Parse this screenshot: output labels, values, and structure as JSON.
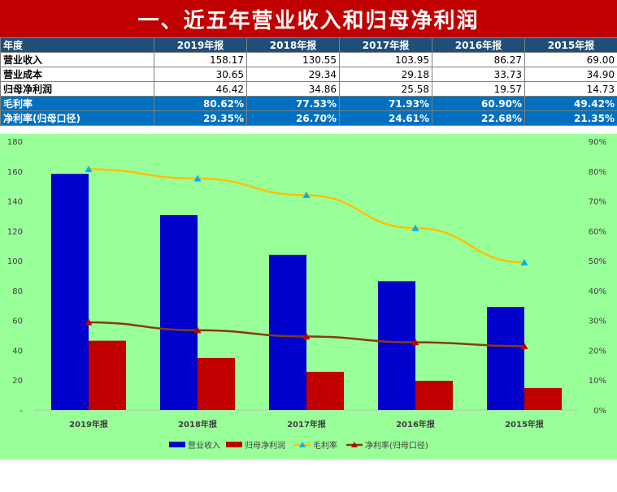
{
  "title": "一、近五年营业收入和归母净利润",
  "table": {
    "header_label": "年度",
    "years": [
      "2019年报",
      "2018年报",
      "2017年报",
      "2016年报",
      "2015年报"
    ],
    "rows": [
      {
        "label": "营业收入",
        "values": [
          "158.17",
          "130.55",
          "103.95",
          "86.27",
          "69.00"
        ],
        "style": "plain"
      },
      {
        "label": "营业成本",
        "values": [
          "30.65",
          "29.34",
          "29.18",
          "33.73",
          "34.90"
        ],
        "style": "plain"
      },
      {
        "label": "归母净利润",
        "values": [
          "46.42",
          "34.86",
          "25.58",
          "19.57",
          "14.73"
        ],
        "style": "plain"
      },
      {
        "label": "毛利率",
        "values": [
          "80.62%",
          "77.53%",
          "71.93%",
          "60.90%",
          "49.42%"
        ],
        "style": "rate"
      },
      {
        "label": "净利率(归母口径)",
        "values": [
          "29.35%",
          "26.70%",
          "24.61%",
          "22.68%",
          "21.35%"
        ],
        "style": "rate"
      }
    ]
  },
  "chart_data": {
    "type": "bar",
    "categories": [
      "2019年报",
      "2018年报",
      "2017年报",
      "2016年报",
      "2015年报"
    ],
    "series": [
      {
        "name": "营业收入",
        "type": "bar",
        "axis": "left",
        "color": "#0000cc",
        "values": [
          158.17,
          130.55,
          103.95,
          86.27,
          69.0
        ]
      },
      {
        "name": "归母净利润",
        "type": "bar",
        "axis": "left",
        "color": "#c00000",
        "values": [
          46.42,
          34.86,
          25.58,
          19.57,
          14.73
        ]
      },
      {
        "name": "毛利率",
        "type": "line",
        "axis": "right",
        "color": "#ffc000",
        "marker_color": "#00b0f0",
        "values": [
          80.62,
          77.53,
          71.93,
          60.9,
          49.42
        ]
      },
      {
        "name": "净利率(归母口径)",
        "type": "line",
        "axis": "right",
        "color": "#843c0c",
        "marker_color": "#c00000",
        "values": [
          29.35,
          26.7,
          24.61,
          22.68,
          21.35
        ]
      }
    ],
    "y_left": {
      "min": 0,
      "max": 180,
      "step": 20,
      "ticks": [
        "-",
        "20",
        "40",
        "60",
        "80",
        "100",
        "120",
        "140",
        "160",
        "180"
      ]
    },
    "y_right": {
      "min": 0,
      "max": 90,
      "step": 10,
      "ticks": [
        "0%",
        "10%",
        "20%",
        "30%",
        "40%",
        "50%",
        "60%",
        "70%",
        "80%",
        "90%"
      ]
    },
    "legend_position": "bottom",
    "grid": false,
    "background": "#99ff99"
  }
}
